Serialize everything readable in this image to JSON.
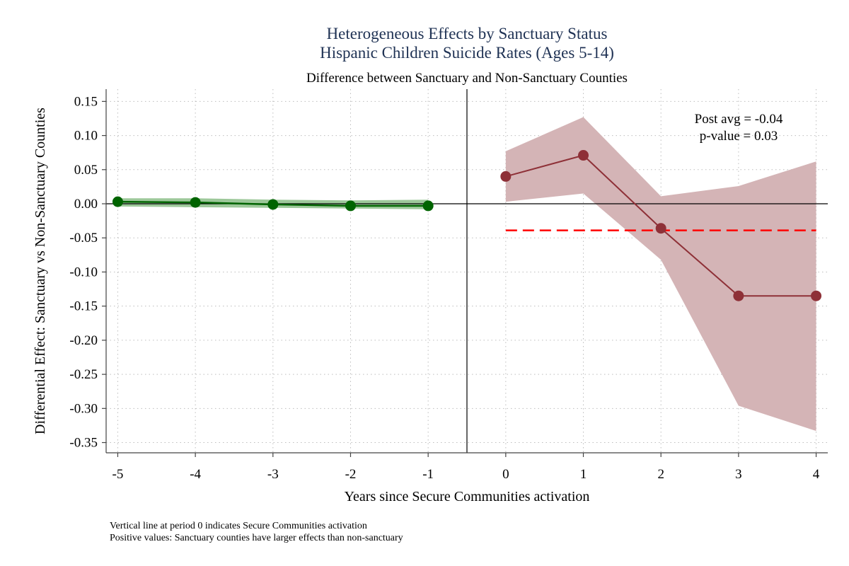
{
  "chart_data": {
    "type": "line",
    "title": "Heterogeneous Effects by Sanctuary Status",
    "subtitle": "Hispanic Children Suicide Rates (Ages 5-14)",
    "subtitle2": "Difference between Sanctuary and Non-Sanctuary Counties",
    "xlabel": "Years since Secure Communities activation",
    "ylabel": "Differential Effect: Sanctuary vs Non-Sanctuary Counties",
    "xlim": [
      -5.15,
      4.15
    ],
    "ylim": [
      -0.365,
      0.168
    ],
    "x_ticks": [
      -5,
      -4,
      -3,
      -2,
      -1,
      0,
      1,
      2,
      3,
      4
    ],
    "y_ticks": [
      0.15,
      0.1,
      0.05,
      0.0,
      -0.05,
      -0.1,
      -0.15,
      -0.2,
      -0.25,
      -0.3,
      -0.35
    ],
    "y_tick_labels": [
      "0.15",
      "0.10",
      "0.05",
      "0.00",
      "-0.05",
      "-0.10",
      "-0.15",
      "-0.20",
      "-0.25",
      "-0.30",
      "-0.35"
    ],
    "grid": true,
    "series": [
      {
        "x": [
          -5,
          -4,
          -3,
          -2,
          -1
        ],
        "values": [
          0.003,
          0.002,
          -0.001,
          -0.003,
          -0.003
        ],
        "ci_lower": [
          -0.004,
          -0.005,
          -0.006,
          -0.007,
          -0.008
        ],
        "ci_upper": [
          0.008,
          0.008,
          0.006,
          0.005,
          0.006
        ],
        "color": "#006400",
        "band_color": "#9DC89A"
      },
      {
        "x": [
          0,
          1,
          2,
          3,
          4
        ],
        "values": [
          0.04,
          0.071,
          -0.036,
          -0.135,
          -0.135
        ],
        "ci_lower": [
          0.003,
          0.015,
          -0.082,
          -0.296,
          -0.333
        ],
        "ci_upper": [
          0.077,
          0.127,
          0.011,
          0.026,
          0.062
        ],
        "color": "#8E3037",
        "band_color": "#D4B4B6"
      }
    ],
    "post_avg_line": {
      "y": -0.039,
      "x_start": 0,
      "x_end": 4,
      "color": "#FF0000"
    },
    "vertical_line_x": -0.5,
    "zero_line_y": 0,
    "annotation": {
      "line1": "Post avg = -0.04",
      "line2": "p-value = 0.03"
    },
    "notes": [
      "Vertical line at period 0 indicates Secure Communities activation",
      "Positive values: Sanctuary counties have larger effects than non-sanctuary"
    ]
  }
}
